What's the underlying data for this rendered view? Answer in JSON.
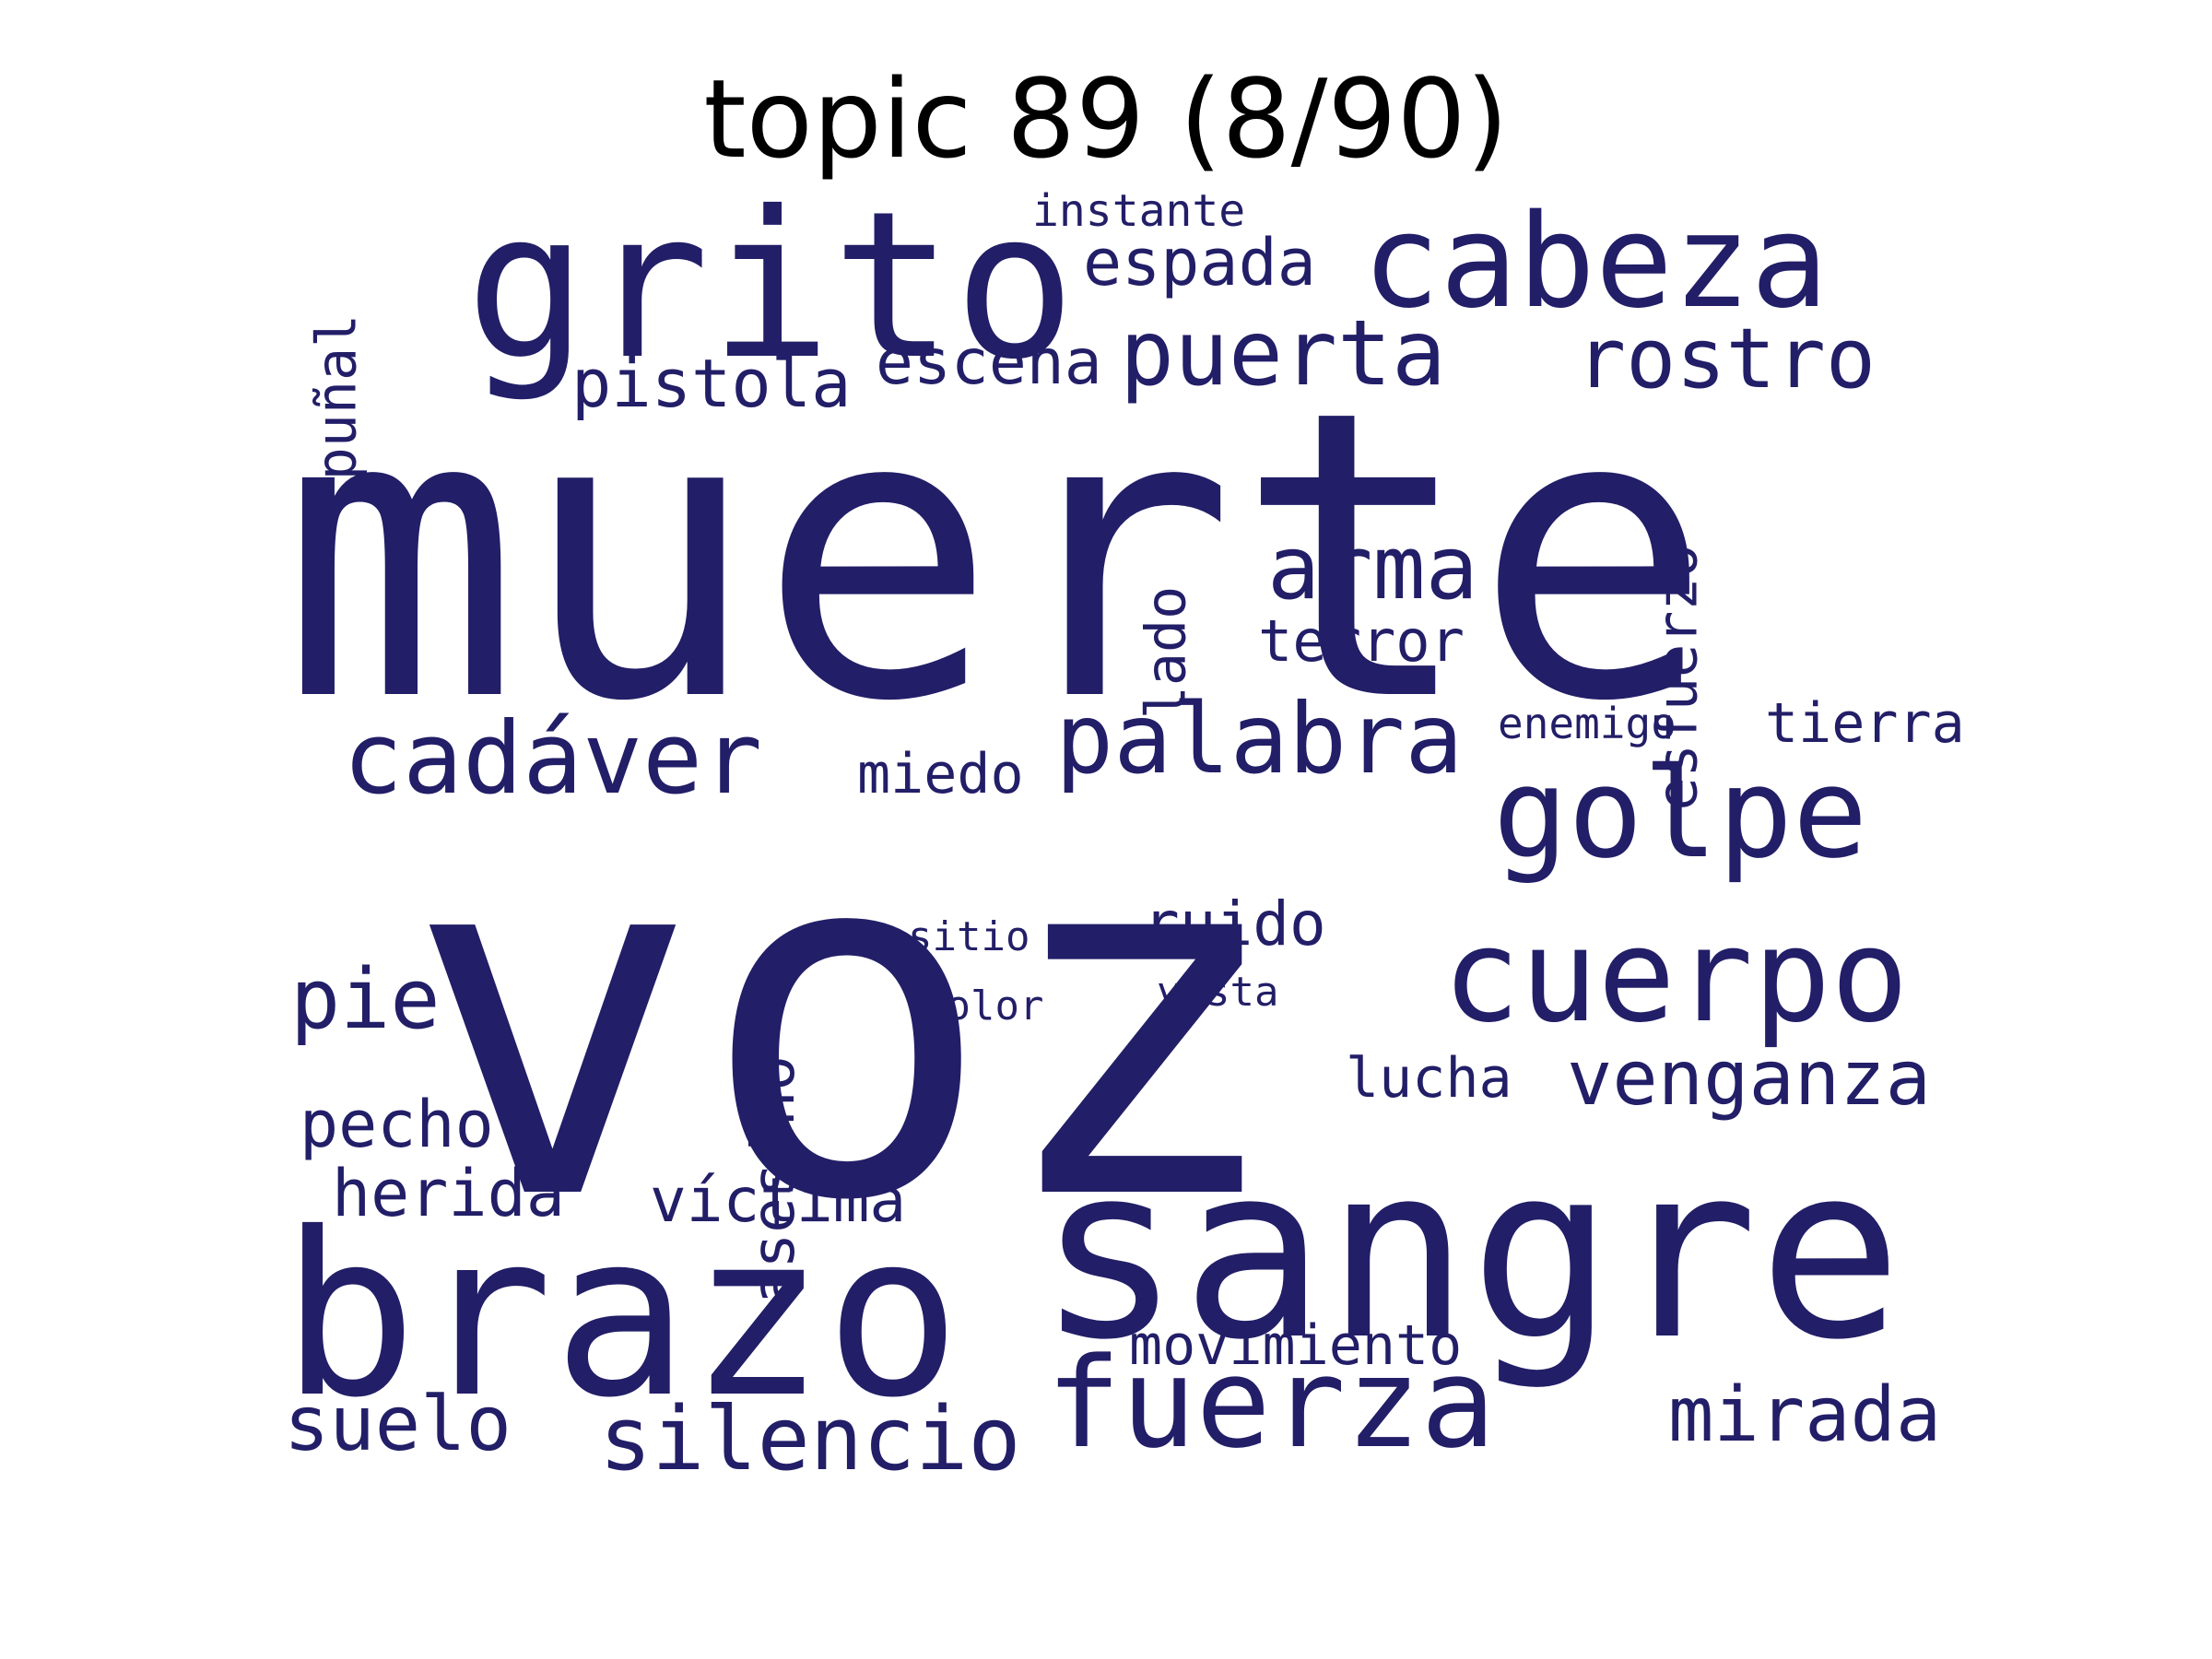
{
  "title": "topic 89 (8/90)",
  "colors": {
    "word": "#221e67",
    "title": "#000000",
    "background": "#ffffff"
  },
  "words": [
    {
      "key": "muerte",
      "text": "muerte",
      "weight": 1.0
    },
    {
      "key": "voz",
      "text": "voz",
      "weight": 0.98
    },
    {
      "key": "sangre",
      "text": "sangre",
      "weight": 0.62
    },
    {
      "key": "brazo",
      "text": "brazo",
      "weight": 0.56
    },
    {
      "key": "grito",
      "text": "grito",
      "weight": 0.52
    },
    {
      "key": "cabeza",
      "text": "cabeza",
      "weight": 0.4
    },
    {
      "key": "cuerpo",
      "text": "cuerpo",
      "weight": 0.39
    },
    {
      "key": "fuerza",
      "text": "fuerza",
      "weight": 0.37
    },
    {
      "key": "golpe",
      "text": "golpe",
      "weight": 0.36
    },
    {
      "key": "palabra",
      "text": "palabra",
      "weight": 0.3
    },
    {
      "key": "cadaver",
      "text": "cadáver",
      "weight": 0.3
    },
    {
      "key": "puerta",
      "text": "puerta",
      "weight": 0.27
    },
    {
      "key": "arma",
      "text": "arma",
      "weight": 0.26
    },
    {
      "key": "silencio",
      "text": "silencio",
      "weight": 0.25
    },
    {
      "key": "rostro",
      "text": "rostro",
      "weight": 0.25
    },
    {
      "key": "pie",
      "text": "pie",
      "weight": 0.25
    },
    {
      "key": "mirada",
      "text": "mirada",
      "weight": 0.24
    },
    {
      "key": "suelo",
      "text": "suelo",
      "weight": 0.24
    },
    {
      "key": "venganza",
      "text": "venganza",
      "weight": 0.23
    },
    {
      "key": "pistola",
      "text": "pistola",
      "weight": 0.21
    },
    {
      "key": "espada",
      "text": "espada",
      "weight": 0.2
    },
    {
      "key": "escena",
      "text": "escena",
      "weight": 0.2
    },
    {
      "key": "pecho",
      "text": "pecho",
      "weight": 0.19
    },
    {
      "key": "herida",
      "text": "herida",
      "weight": 0.19
    },
    {
      "key": "victima",
      "text": "víctima",
      "weight": 0.19
    },
    {
      "key": "ruido",
      "text": "ruido",
      "weight": 0.18
    },
    {
      "key": "asesino",
      "text": "asesino",
      "weight": 0.18
    },
    {
      "key": "movimiento",
      "text": "movimiento",
      "weight": 0.18
    },
    {
      "key": "esfuerzo",
      "text": "esfuerzo",
      "weight": 0.18
    },
    {
      "key": "terror",
      "text": "terror",
      "weight": 0.17
    },
    {
      "key": "punal",
      "text": "puñal",
      "weight": 0.17
    },
    {
      "key": "tierra",
      "text": "tierra",
      "weight": 0.17
    },
    {
      "key": "lucha",
      "text": "lucha",
      "weight": 0.17
    },
    {
      "key": "miedo",
      "text": "miedo",
      "weight": 0.16
    },
    {
      "key": "lado",
      "text": "lado",
      "weight": 0.16
    },
    {
      "key": "instante",
      "text": "instante",
      "weight": 0.13
    },
    {
      "key": "enemigo",
      "text": "enemigo",
      "weight": 0.12
    },
    {
      "key": "sitio",
      "text": "sitio",
      "weight": 0.12
    },
    {
      "key": "dolor",
      "text": "dolor",
      "weight": 0.12
    },
    {
      "key": "vista",
      "text": "vista",
      "weight": 0.12
    }
  ]
}
